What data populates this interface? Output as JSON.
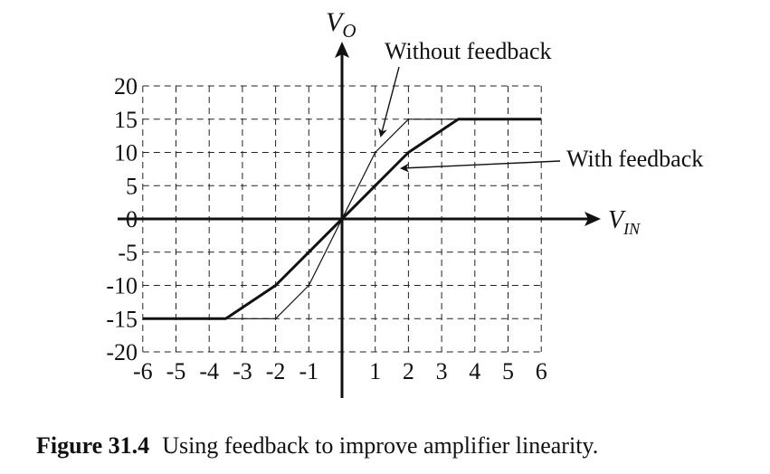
{
  "chart_data": {
    "type": "line",
    "x_axis": {
      "label_main": "V",
      "label_sub": "IN",
      "range": [
        -6,
        6
      ],
      "ticks": [
        -6,
        -5,
        -4,
        -3,
        -2,
        -1,
        1,
        2,
        3,
        4,
        5,
        6
      ]
    },
    "y_axis": {
      "label_main": "V",
      "label_sub": "O",
      "range": [
        -20,
        20
      ],
      "ticks": [
        20,
        15,
        10,
        5,
        0,
        -5,
        -10,
        -15,
        -20
      ]
    },
    "grid": "dashed",
    "series": [
      {
        "name": "Without feedback",
        "style": "thin",
        "points": [
          [
            -6,
            -15
          ],
          [
            -2,
            -15
          ],
          [
            -1,
            -10
          ],
          [
            1,
            10
          ],
          [
            2,
            15
          ],
          [
            6,
            15
          ]
        ]
      },
      {
        "name": "With feedback",
        "style": "bold",
        "points": [
          [
            -6,
            -15
          ],
          [
            -3.5,
            -15
          ],
          [
            -2,
            -10
          ],
          [
            2,
            10
          ],
          [
            3.5,
            15
          ],
          [
            6,
            15
          ]
        ]
      }
    ],
    "annotations": [
      {
        "text": "Without feedback",
        "points_to": [
          1.2,
          11
        ]
      },
      {
        "text": "With feedback",
        "points_to": [
          1.8,
          7.5
        ]
      }
    ]
  },
  "caption": {
    "label": "Figure 31.4",
    "text": "Using feedback to improve amplifier linearity."
  }
}
